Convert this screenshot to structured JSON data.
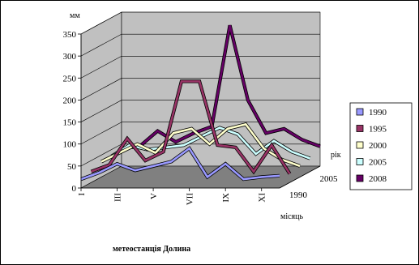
{
  "chart_data": {
    "type": "line",
    "variant": "3d-line",
    "title": "",
    "caption": "метеостанція Долина",
    "ylabel": "мм",
    "xlabel": "місяць",
    "zlabel": "рік",
    "ylim": [
      0,
      350
    ],
    "yticks": [
      0,
      50,
      100,
      150,
      200,
      250,
      300,
      350
    ],
    "months": [
      "I",
      "II",
      "III",
      "IV",
      "V",
      "VI",
      "VII",
      "VIII",
      "IX",
      "X",
      "XI",
      "XII"
    ],
    "xtick_labels": [
      "I",
      "III",
      "V",
      "VII",
      "IX",
      "XI"
    ],
    "xtick_months": [
      "I",
      "III",
      "V",
      "VII",
      "IX",
      "XI"
    ],
    "depth_tick_labels": [
      "1990",
      "2005"
    ],
    "grid": true,
    "legend_position": "right",
    "series": [
      {
        "name": "1990",
        "color": "#9999ff",
        "values": [
          20,
          35,
          55,
          40,
          50,
          60,
          90,
          25,
          55,
          20,
          25,
          28
        ]
      },
      {
        "name": "1995",
        "color": "#993366",
        "values": [
          25,
          40,
          100,
          50,
          70,
          230,
          230,
          85,
          80,
          25,
          85,
          20
        ]
      },
      {
        "name": "2000",
        "color": "#ffffcc",
        "values": [
          35,
          55,
          75,
          55,
          100,
          110,
          75,
          110,
          120,
          65,
          40,
          25
        ]
      },
      {
        "name": "2005",
        "color": "#ccffff",
        "values": [
          35,
          60,
          50,
          55,
          60,
          80,
          100,
          85,
          40,
          70,
          45,
          30
        ]
      },
      {
        "name": "2008",
        "color": "#660066",
        "values": [
          40,
          45,
          80,
          55,
          75,
          90,
          320,
          150,
          75,
          85,
          60,
          45
        ]
      }
    ]
  }
}
